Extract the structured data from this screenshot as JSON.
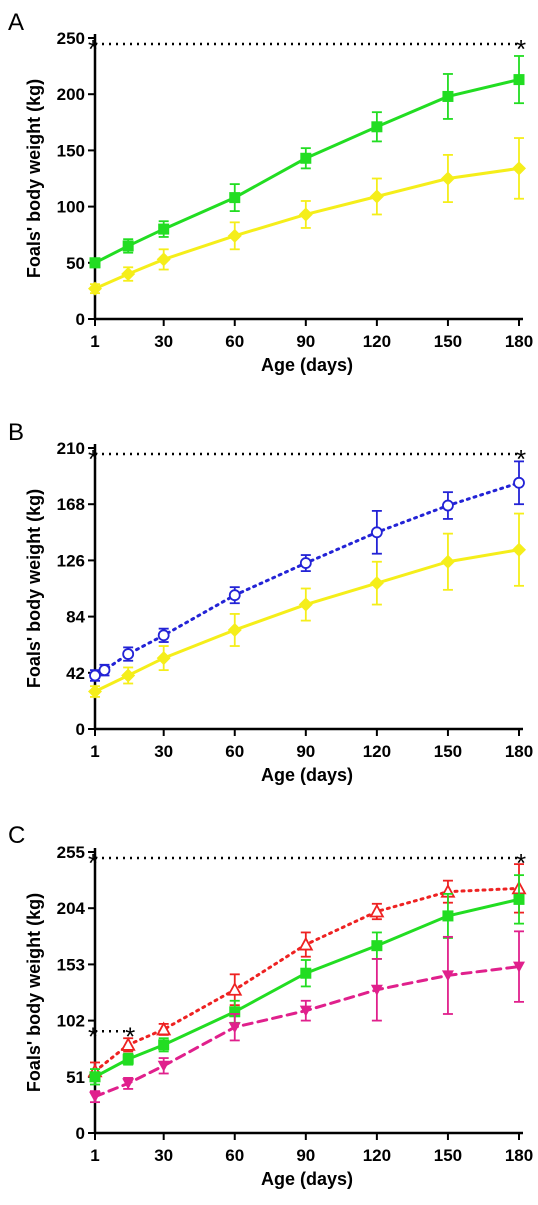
{
  "chart_data": [
    {
      "type": "line",
      "panel_label": "A",
      "xlabel": "Age (days)",
      "ylabel": "Foals' body weight (kg)",
      "xticks": [
        1,
        30,
        60,
        90,
        120,
        150,
        180
      ],
      "yticks": [
        0,
        50,
        100,
        150,
        200,
        250
      ],
      "xlim": [
        1,
        180
      ],
      "ylim": [
        0,
        250
      ],
      "series": [
        {
          "color": "#22DD22",
          "line": "solid",
          "marker": "square",
          "x": [
            1,
            15,
            30,
            60,
            90,
            120,
            150,
            180
          ],
          "y": [
            50,
            65,
            80,
            108,
            143,
            171,
            198,
            213
          ],
          "err": [
            4,
            6,
            7,
            12,
            9,
            13,
            20,
            21
          ]
        },
        {
          "color": "#F5EE1A",
          "line": "solid",
          "marker": "diamond",
          "x": [
            1,
            15,
            30,
            60,
            90,
            120,
            150,
            180
          ],
          "y": [
            27,
            40,
            53,
            74,
            93,
            109,
            125,
            134
          ],
          "err": [
            4,
            6,
            9,
            12,
            12,
            16,
            21,
            27
          ]
        }
      ],
      "significance": [
        {
          "from": 1,
          "to": 180,
          "label_left": "*",
          "label_right": "*"
        }
      ]
    },
    {
      "type": "line",
      "panel_label": "B",
      "xlabel": "Age (days)",
      "ylabel": "Foals' body weight (kg)",
      "xticks": [
        1,
        30,
        60,
        90,
        120,
        150,
        180
      ],
      "yticks": [
        0,
        42,
        84,
        126,
        168,
        210
      ],
      "xlim": [
        1,
        180
      ],
      "ylim": [
        0,
        210
      ],
      "series": [
        {
          "color": "#2323D6",
          "line": "dotted",
          "marker": "open-circle",
          "x": [
            1,
            5,
            15,
            30,
            60,
            90,
            120,
            150,
            180
          ],
          "y": [
            40,
            44,
            56,
            70,
            100,
            124,
            147,
            167,
            184
          ],
          "err": [
            4,
            4,
            5,
            5,
            6,
            6,
            16,
            10,
            16
          ]
        },
        {
          "color": "#F5EE1A",
          "line": "solid",
          "marker": "diamond",
          "x": [
            1,
            15,
            30,
            60,
            90,
            120,
            150,
            180
          ],
          "y": [
            28,
            40,
            53,
            74,
            93,
            109,
            125,
            134
          ],
          "err": [
            4,
            6,
            9,
            12,
            12,
            16,
            21,
            27
          ]
        }
      ],
      "significance": [
        {
          "from": 1,
          "to": 180,
          "label_left": "*",
          "label_right": "*"
        }
      ]
    },
    {
      "type": "line",
      "panel_label": "C",
      "xlabel": "Age (days)",
      "ylabel": "Foals' body weight (kg)",
      "xticks": [
        1,
        30,
        60,
        90,
        120,
        150,
        180
      ],
      "yticks": [
        0,
        51,
        102,
        153,
        204,
        255
      ],
      "xlim": [
        1,
        180
      ],
      "ylim": [
        0,
        255
      ],
      "series": [
        {
          "color": "#EE2222",
          "line": "dotted",
          "marker": "open-triangle",
          "x": [
            1,
            15,
            30,
            60,
            90,
            120,
            150,
            180
          ],
          "y": [
            56,
            80,
            94,
            130,
            171,
            201,
            219,
            222
          ],
          "err": [
            8,
            6,
            5,
            14,
            11,
            7,
            10,
            22
          ]
        },
        {
          "color": "#22DD22",
          "line": "solid",
          "marker": "square",
          "x": [
            1,
            15,
            30,
            60,
            90,
            120,
            150,
            180
          ],
          "y": [
            51,
            67,
            80,
            110,
            145,
            170,
            197,
            212
          ],
          "err": [
            7,
            5,
            6,
            10,
            12,
            12,
            20,
            22
          ]
        },
        {
          "color": "#E0208C",
          "line": "dashed",
          "marker": "down-triangle",
          "x": [
            1,
            15,
            30,
            60,
            90,
            120,
            150,
            180
          ],
          "y": [
            33,
            45,
            61,
            96,
            111,
            130,
            143,
            151
          ],
          "err": [
            5,
            5,
            7,
            12,
            9,
            28,
            35,
            32
          ]
        }
      ],
      "significance": [
        {
          "from": 1,
          "to": 180,
          "label_left": "*",
          "label_right": "*"
        },
        {
          "from": 1,
          "to": 15,
          "label_left": "*",
          "label_right": "*"
        }
      ]
    }
  ]
}
